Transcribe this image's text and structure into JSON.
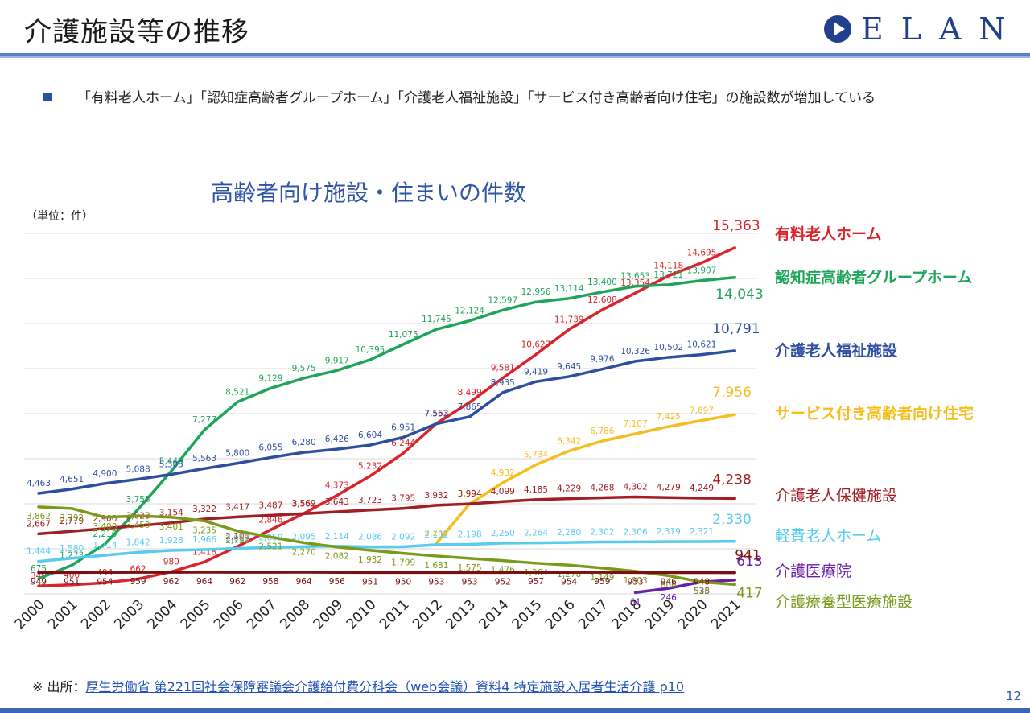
{
  "slide": {
    "title": "介護施設等の推移",
    "logo_text": "ELAN",
    "bullet_text": "「有料老人ホーム」「認知症高齢者グループホーム」「介護老人福祉施設」「サービス付き高齢者向け住宅」の施設数が増加している",
    "source_prefix": "※ 出所：",
    "source_link": "厚生労働省 第221回社会保障審議会介護給付費分科会（web会議）資料4 特定施設入居者生活介護 p10",
    "page_number": "12",
    "accent_color": "#3d63b8"
  },
  "chart_data": {
    "type": "line",
    "title": "高齢者向け施設・住まいの件数",
    "unit_label": "（単位：件）",
    "xlabel": "",
    "ylabel": "",
    "ylim": [
      0,
      16000
    ],
    "grid": true,
    "legend_position": "right",
    "x": [
      "2000",
      "2001",
      "2002",
      "2003",
      "2004",
      "2005",
      "2006",
      "2007",
      "2008",
      "2009",
      "2010",
      "2011",
      "2012",
      "2013",
      "2014",
      "2015",
      "2016",
      "2017",
      "2018",
      "2019",
      "2020",
      "2021"
    ],
    "series": [
      {
        "name": "有料老人ホーム",
        "color": "#d9242c",
        "bold": true,
        "values": [
          349,
          400,
          494,
          662,
          980,
          1418,
          2104,
          2846,
          3569,
          4373,
          5232,
          6244,
          7563,
          8499,
          9581,
          10627,
          11739,
          12608,
          13354,
          14118,
          14695,
          15363
        ],
        "labels": [
          "349",
          "400",
          "494",
          "662",
          "980",
          "1,418",
          "2,104",
          "2,846",
          "3,569",
          "4,373",
          "5,232",
          "6,244",
          "7,563",
          "8,499",
          "9,581",
          "10,627",
          "11,739",
          "12,608",
          "13,354",
          "14,118",
          "14,695",
          "15,363"
        ]
      },
      {
        "name": "認知症高齢者グループホーム",
        "color": "#1fa55a",
        "bold": true,
        "values": [
          675,
          1273,
          2210,
          3755,
          5449,
          7277,
          8521,
          9129,
          9575,
          9917,
          10395,
          11075,
          11745,
          12124,
          12597,
          12956,
          13114,
          13400,
          13653,
          13721,
          13907,
          14043
        ],
        "labels": [
          "675",
          "1,273",
          "2,210",
          "3,755",
          "5,449",
          "7,277",
          "8,521",
          "9,129",
          "9,575",
          "9,917",
          "10,395",
          "11,075",
          "11,745",
          "12,124",
          "12,597",
          "12,956",
          "13,114",
          "13,400",
          "13,653",
          "13,721",
          "13,907",
          "14,043"
        ]
      },
      {
        "name": "介護老人福祉施設",
        "color": "#2e4fa0",
        "bold": true,
        "values": [
          4463,
          4651,
          4900,
          5088,
          5303,
          5563,
          5800,
          6055,
          6280,
          6426,
          6604,
          6951,
          7552,
          7865,
          8935,
          9419,
          9645,
          9976,
          10326,
          10502,
          10621,
          10791
        ],
        "labels": [
          "4,463",
          "4,651",
          "4,900",
          "5,088",
          "5,303",
          "5,563",
          "5,800",
          "6,055",
          "6,280",
          "6,426",
          "6,604",
          "6,951",
          "7,552",
          "7,865",
          "8,935",
          "9,419",
          "9,645",
          "9,976",
          "10,326",
          "10,502",
          "10,621",
          "10,791"
        ]
      },
      {
        "name": "サービス付き高齢者向け住宅",
        "color": "#f5be1e",
        "bold": true,
        "values": [
          null,
          null,
          null,
          null,
          null,
          null,
          null,
          null,
          null,
          null,
          null,
          null,
          2245,
          3994,
          4932,
          5734,
          6342,
          6786,
          7107,
          7425,
          7697,
          7956
        ],
        "labels": [
          "",
          "",
          "",
          "",
          "",
          "",
          "",
          "",
          "",
          "",
          "",
          "",
          "2,245",
          "3,994",
          "4,932",
          "5,734",
          "6,342",
          "6,786",
          "7,107",
          "7,425",
          "7,697",
          "7,956"
        ]
      },
      {
        "name": "介護老人保健施設",
        "color": "#a01e24",
        "bold": false,
        "values": [
          2667,
          2779,
          2900,
          3023,
          3154,
          3322,
          3417,
          3487,
          3562,
          3643,
          3723,
          3795,
          3932,
          3994,
          4099,
          4185,
          4229,
          4268,
          4302,
          4279,
          4249,
          4238
        ],
        "labels": [
          "2,667",
          "2,779",
          "2,900",
          "3,023",
          "3,154",
          "3,322",
          "3,417",
          "3,487",
          "3,562",
          "3,643",
          "3,723",
          "3,795",
          "3,932",
          "3,994",
          "4,099",
          "4,185",
          "4,229",
          "4,268",
          "4,302",
          "4,279",
          "4,249",
          "4,238"
        ]
      },
      {
        "name": "軽費老人ホーム",
        "color": "#58cbef",
        "bold": false,
        "values": [
          1444,
          1580,
          1714,
          1842,
          1928,
          1966,
          2016,
          2059,
          2095,
          2114,
          2086,
          2092,
          2182,
          2198,
          2250,
          2264,
          2280,
          2302,
          2306,
          2319,
          2321,
          2330
        ],
        "labels": [
          "1,444",
          "1,580",
          "1,714",
          "1,842",
          "1,928",
          "1,966",
          "2,016",
          "2,059",
          "2,095",
          "2,114",
          "2,086",
          "2,092",
          "2,182",
          "2,198",
          "2,250",
          "2,264",
          "2,280",
          "2,302",
          "2,306",
          "2,319",
          "2,321",
          "2,330"
        ]
      },
      {
        "name": "介護医療院",
        "color": "#6a1fa8",
        "bold": false,
        "values": [
          null,
          null,
          null,
          null,
          null,
          null,
          null,
          null,
          null,
          null,
          null,
          null,
          null,
          null,
          null,
          null,
          null,
          null,
          61,
          246,
          535,
          613
        ],
        "labels": [
          "",
          "",
          "",
          "",
          "",
          "",
          "",
          "",
          "",
          "",
          "",
          "",
          "",
          "",
          "",
          "",
          "",
          "",
          "61",
          "246",
          "535",
          "613"
        ]
      },
      {
        "name": "介護療養型医療施設",
        "color": "#7a9a1a",
        "bold": false,
        "values": [
          3862,
          3792,
          3400,
          3459,
          3401,
          3235,
          2791,
          2521,
          2270,
          2082,
          1932,
          1799,
          1681,
          1575,
          1476,
          1364,
          1278,
          1149,
          1003,
          806,
          528,
          417
        ],
        "labels": [
          "3,862",
          "3,792",
          "3,400",
          "3,459",
          "3,401",
          "3,235",
          "2,791",
          "2,521",
          "2,270",
          "2,082",
          "1,932",
          "1,799",
          "1,681",
          "1,575",
          "1,476",
          "1,364",
          "1,278",
          "1,149",
          "1,003",
          "806",
          "528",
          "417"
        ]
      },
      {
        "name": "",
        "color": "#7a1010",
        "bold": false,
        "values": [
          949,
          951,
          954,
          959,
          962,
          964,
          962,
          958,
          964,
          956,
          951,
          950,
          953,
          953,
          952,
          957,
          954,
          959,
          953,
          946,
          948,
          941
        ],
        "labels": [
          "949",
          "951",
          "954",
          "959",
          "962",
          "964",
          "962",
          "958",
          "964",
          "956",
          "951",
          "950",
          "953",
          "953",
          "952",
          "957",
          "954",
          "959",
          "953",
          "946",
          "948",
          "941"
        ]
      }
    ]
  }
}
